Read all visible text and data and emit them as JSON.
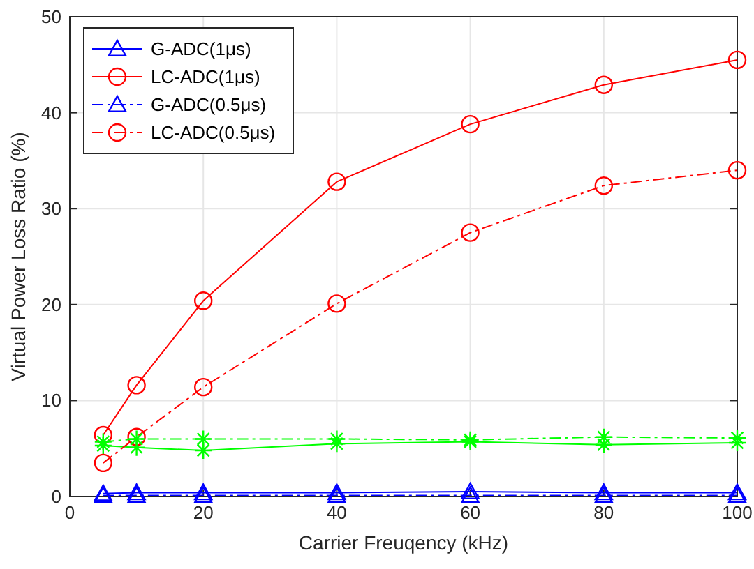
{
  "chart_data": {
    "type": "line",
    "xlabel": "Carrier Freuqency (kHz)",
    "ylabel": "Virtual Power Loss Ratio (%)",
    "x": [
      5,
      10,
      20,
      40,
      60,
      80,
      100
    ],
    "series": [
      {
        "name": "G-ADC(1μs)",
        "color": "#0000ff",
        "marker": "triangle",
        "line_style": "solid",
        "values": [
          0.3,
          0.4,
          0.4,
          0.4,
          0.5,
          0.4,
          0.4
        ]
      },
      {
        "name": "LC-ADC(1μs)",
        "color": "#ff0000",
        "marker": "circle",
        "line_style": "solid",
        "values": [
          6.4,
          11.6,
          20.4,
          32.8,
          38.8,
          42.9,
          45.5
        ]
      },
      {
        "color": "#00ff00",
        "marker": "cross",
        "line_style": "solid",
        "values": [
          5.3,
          5.1,
          4.8,
          5.5,
          5.7,
          5.4,
          5.6
        ]
      },
      {
        "name": "G-ADC(0.5μs)",
        "color": "#0000ff",
        "marker": "triangle",
        "line_style": "dashdot",
        "values": [
          0.1,
          0.1,
          0.1,
          0.1,
          0.1,
          0.1,
          0.1
        ]
      },
      {
        "name": "LC-ADC(0.5μs)",
        "color": "#ff0000",
        "marker": "circle",
        "line_style": "dashdot",
        "values": [
          3.5,
          6.2,
          11.4,
          20.1,
          27.5,
          32.4,
          34.0
        ]
      },
      {
        "color": "#00ff00",
        "marker": "cross",
        "line_style": "dashdot",
        "values": [
          5.7,
          6.0,
          6.0,
          6.0,
          5.9,
          6.2,
          6.1
        ]
      }
    ],
    "xlim": [
      0,
      100
    ],
    "xticks": [
      0,
      20,
      40,
      60,
      80,
      100
    ],
    "ylim": [
      0,
      50
    ],
    "yticks": [
      0,
      10,
      20,
      30,
      40,
      50
    ],
    "grid": true,
    "legend": "top left"
  }
}
